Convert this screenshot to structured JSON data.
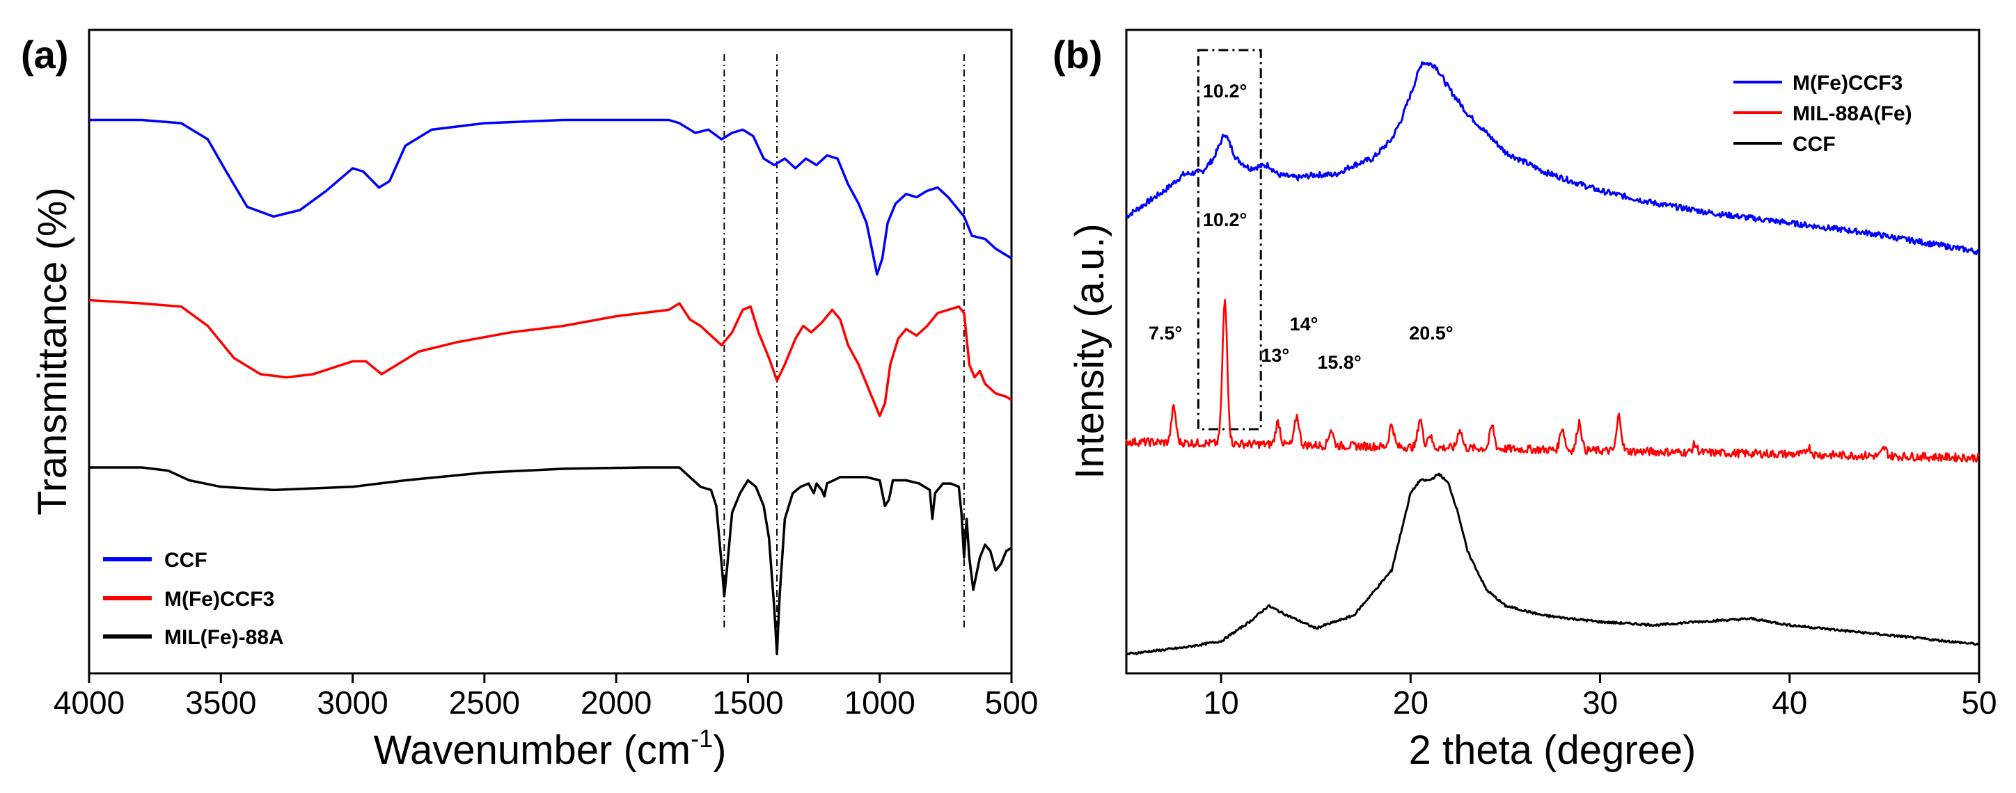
{
  "chart_data": [
    {
      "panel": "(a)",
      "type": "line",
      "title": "",
      "xlabel": "Wavenumber (cm",
      "xlabel_sup": "-1",
      "xlabel_end": ")",
      "ylabel": "Transmittance (%)",
      "xlim": [
        4000,
        500
      ],
      "x_reversed": true,
      "y_ticks_shown": false,
      "xticks": [
        4000,
        3500,
        3000,
        2500,
        2000,
        1500,
        1000,
        500
      ],
      "legend": {
        "position": "bottom-left"
      },
      "reference_lines": [
        1590,
        1390,
        680
      ],
      "series": [
        {
          "name": "CCF",
          "color": "#0000ff",
          "points": [
            [
              4000,
              86
            ],
            [
              3800,
              86
            ],
            [
              3650,
              85.5
            ],
            [
              3550,
              83
            ],
            [
              3480,
              78
            ],
            [
              3400,
              72.5
            ],
            [
              3300,
              71
            ],
            [
              3200,
              72
            ],
            [
              3100,
              75
            ],
            [
              3000,
              78.5
            ],
            [
              2960,
              78
            ],
            [
              2900,
              75.5
            ],
            [
              2860,
              76.5
            ],
            [
              2800,
              82
            ],
            [
              2700,
              84.5
            ],
            [
              2500,
              85.5
            ],
            [
              2200,
              86
            ],
            [
              2000,
              86
            ],
            [
              1800,
              86
            ],
            [
              1760,
              85.5
            ],
            [
              1700,
              84
            ],
            [
              1650,
              84.5
            ],
            [
              1600,
              83
            ],
            [
              1560,
              84
            ],
            [
              1520,
              84.5
            ],
            [
              1480,
              83.5
            ],
            [
              1440,
              80
            ],
            [
              1400,
              79
            ],
            [
              1360,
              80
            ],
            [
              1320,
              78.5
            ],
            [
              1280,
              80
            ],
            [
              1240,
              79
            ],
            [
              1200,
              80.5
            ],
            [
              1160,
              80
            ],
            [
              1120,
              76
            ],
            [
              1080,
              73
            ],
            [
              1050,
              70
            ],
            [
              1030,
              66
            ],
            [
              1010,
              62
            ],
            [
              990,
              64.5
            ],
            [
              970,
              70
            ],
            [
              940,
              73
            ],
            [
              900,
              74.5
            ],
            [
              860,
              74
            ],
            [
              820,
              75
            ],
            [
              780,
              75.5
            ],
            [
              740,
              74
            ],
            [
              700,
              72
            ],
            [
              680,
              71
            ],
            [
              650,
              68
            ],
            [
              600,
              67.5
            ],
            [
              560,
              66
            ],
            [
              520,
              65
            ],
            [
              500,
              64.5
            ]
          ]
        },
        {
          "name": "M(Fe)CCF3",
          "color": "#ff0000",
          "points": [
            [
              4000,
              58
            ],
            [
              3800,
              57.5
            ],
            [
              3650,
              57
            ],
            [
              3550,
              54
            ],
            [
              3450,
              49
            ],
            [
              3350,
              46.5
            ],
            [
              3250,
              46
            ],
            [
              3150,
              46.5
            ],
            [
              3000,
              48.5
            ],
            [
              2950,
              48.5
            ],
            [
              2890,
              46.5
            ],
            [
              2850,
              47.5
            ],
            [
              2750,
              50
            ],
            [
              2600,
              51.5
            ],
            [
              2400,
              53
            ],
            [
              2200,
              54
            ],
            [
              2000,
              55.5
            ],
            [
              1800,
              56.5
            ],
            [
              1760,
              57.5
            ],
            [
              1720,
              55
            ],
            [
              1680,
              54
            ],
            [
              1640,
              52.5
            ],
            [
              1600,
              51
            ],
            [
              1560,
              53
            ],
            [
              1520,
              56.5
            ],
            [
              1490,
              57
            ],
            [
              1460,
              53
            ],
            [
              1420,
              49
            ],
            [
              1390,
              45.5
            ],
            [
              1360,
              48
            ],
            [
              1320,
              52
            ],
            [
              1290,
              54
            ],
            [
              1260,
              53
            ],
            [
              1220,
              54.5
            ],
            [
              1180,
              56.5
            ],
            [
              1150,
              55
            ],
            [
              1120,
              51
            ],
            [
              1080,
              48
            ],
            [
              1050,
              45
            ],
            [
              1020,
              42
            ],
            [
              1000,
              40
            ],
            [
              980,
              42
            ],
            [
              960,
              48
            ],
            [
              930,
              52
            ],
            [
              900,
              53.5
            ],
            [
              860,
              52.5
            ],
            [
              820,
              54
            ],
            [
              780,
              56
            ],
            [
              740,
              56.5
            ],
            [
              700,
              57
            ],
            [
              680,
              56
            ],
            [
              660,
              48
            ],
            [
              640,
              46
            ],
            [
              620,
              47
            ],
            [
              600,
              45
            ],
            [
              560,
              43.5
            ],
            [
              520,
              43
            ],
            [
              500,
              42.5
            ]
          ]
        },
        {
          "name": "MIL(Fe)-88A",
          "color": "#000000",
          "points": [
            [
              4000,
              32
            ],
            [
              3800,
              32
            ],
            [
              3700,
              31.5
            ],
            [
              3620,
              30
            ],
            [
              3500,
              29
            ],
            [
              3300,
              28.5
            ],
            [
              3000,
              29
            ],
            [
              2800,
              30
            ],
            [
              2500,
              31.2
            ],
            [
              2200,
              31.8
            ],
            [
              1900,
              32
            ],
            [
              1760,
              32
            ],
            [
              1720,
              30.5
            ],
            [
              1680,
              29
            ],
            [
              1640,
              28.5
            ],
            [
              1620,
              26
            ],
            [
              1600,
              17
            ],
            [
              1590,
              12
            ],
            [
              1580,
              16
            ],
            [
              1560,
              25
            ],
            [
              1530,
              28
            ],
            [
              1500,
              30
            ],
            [
              1470,
              29
            ],
            [
              1440,
              26
            ],
            [
              1420,
              21
            ],
            [
              1400,
              10
            ],
            [
              1390,
              3
            ],
            [
              1380,
              12
            ],
            [
              1360,
              24
            ],
            [
              1330,
              28
            ],
            [
              1300,
              29
            ],
            [
              1270,
              29.5
            ],
            [
              1250,
              28
            ],
            [
              1240,
              29.5
            ],
            [
              1220,
              28.5
            ],
            [
              1210,
              27.5
            ],
            [
              1200,
              29.5
            ],
            [
              1150,
              30.5
            ],
            [
              1100,
              30.5
            ],
            [
              1050,
              30.5
            ],
            [
              1000,
              30
            ],
            [
              980,
              26
            ],
            [
              965,
              27
            ],
            [
              950,
              30
            ],
            [
              900,
              30
            ],
            [
              850,
              29.5
            ],
            [
              810,
              28.5
            ],
            [
              800,
              24
            ],
            [
              790,
              28
            ],
            [
              760,
              29.5
            ],
            [
              730,
              29.5
            ],
            [
              700,
              29
            ],
            [
              690,
              25
            ],
            [
              680,
              18
            ],
            [
              670,
              24
            ],
            [
              660,
              18
            ],
            [
              645,
              13
            ],
            [
              630,
              16
            ],
            [
              620,
              18
            ],
            [
              600,
              20
            ],
            [
              580,
              19
            ],
            [
              560,
              16
            ],
            [
              540,
              17
            ],
            [
              520,
              19
            ],
            [
              500,
              19.5
            ]
          ]
        }
      ]
    },
    {
      "panel": "(b)",
      "type": "line",
      "title": "",
      "xlabel": "2 theta (degree)",
      "ylabel": "Intensity (a.u.)",
      "xlim": [
        5,
        50
      ],
      "y_ticks_shown": false,
      "xticks": [
        10,
        20,
        30,
        40,
        50
      ],
      "legend": {
        "position": "top-right"
      },
      "highlight_box": [
        8.8,
        12.1
      ],
      "annotations": [
        {
          "text": "10.2°",
          "x": 10.2,
          "series": "M(Fe)CCF3"
        },
        {
          "text": "10.2°",
          "x": 10.2,
          "series": "MIL-88A(Fe)"
        },
        {
          "text": "7.5°",
          "x": 7.5,
          "series": "MIL-88A(Fe)"
        },
        {
          "text": "13°",
          "x": 13,
          "series": "MIL-88A(Fe)"
        },
        {
          "text": "14°",
          "x": 14,
          "series": "MIL-88A(Fe)"
        },
        {
          "text": "15.8°",
          "x": 15.8,
          "series": "MIL-88A(Fe)"
        },
        {
          "text": "20.5°",
          "x": 20.5,
          "series": "MIL-88A(Fe)"
        }
      ],
      "series": [
        {
          "name": "M(Fe)CCF3",
          "color": "#0000ff",
          "points": [
            [
              5,
              71
            ],
            [
              6,
              73
            ],
            [
              7,
              75
            ],
            [
              8,
              77.5
            ],
            [
              9,
              78
            ],
            [
              9.6,
              80
            ],
            [
              10.2,
              84
            ],
            [
              10.8,
              80
            ],
            [
              11.5,
              78.5
            ],
            [
              12.5,
              79
            ],
            [
              13,
              77.5
            ],
            [
              14,
              77
            ],
            [
              15,
              77.5
            ],
            [
              16,
              77.5
            ],
            [
              17,
              79
            ],
            [
              18,
              80
            ],
            [
              19,
              83
            ],
            [
              19.5,
              86
            ],
            [
              20,
              90
            ],
            [
              20.6,
              95
            ],
            [
              21.3,
              94.5
            ],
            [
              22,
              91
            ],
            [
              23,
              87
            ],
            [
              24,
              84
            ],
            [
              25,
              81
            ],
            [
              27,
              78
            ],
            [
              30,
              75
            ],
            [
              33,
              73
            ],
            [
              36,
              71.5
            ],
            [
              40,
              70
            ],
            [
              44,
              68.5
            ],
            [
              47,
              67
            ],
            [
              50,
              65.5
            ]
          ]
        },
        {
          "name": "MIL-88A(Fe)",
          "color": "#ff0000",
          "peaks": [
            [
              7.5,
              5.5
            ],
            [
              10.2,
              22
            ],
            [
              13,
              3.5
            ],
            [
              14,
              4.5
            ],
            [
              15.8,
              2.5
            ],
            [
              19,
              3.5
            ],
            [
              20.5,
              4.5
            ],
            [
              21,
              2
            ],
            [
              22.6,
              3
            ],
            [
              24.3,
              3.5
            ],
            [
              28,
              3.5
            ],
            [
              28.9,
              4.5
            ],
            [
              31,
              5.5
            ],
            [
              35,
              1.2
            ],
            [
              41,
              1.2
            ],
            [
              45,
              1.2
            ]
          ],
          "baseline": [
            [
              5,
              36
            ],
            [
              50,
              33.5
            ]
          ]
        },
        {
          "name": "CCF",
          "color": "#000000",
          "points": [
            [
              5,
              3
            ],
            [
              8,
              4
            ],
            [
              10,
              5
            ],
            [
              11.5,
              8
            ],
            [
              12.5,
              10.5
            ],
            [
              13.5,
              9
            ],
            [
              15,
              7
            ],
            [
              17,
              9
            ],
            [
              19,
              16
            ],
            [
              20,
              28
            ],
            [
              20.5,
              30
            ],
            [
              21,
              30
            ],
            [
              21.5,
              31
            ],
            [
              22,
              29.5
            ],
            [
              22.5,
              25
            ],
            [
              23,
              19
            ],
            [
              24,
              13
            ],
            [
              25,
              10.5
            ],
            [
              27,
              9
            ],
            [
              30,
              8
            ],
            [
              33,
              7.5
            ],
            [
              35,
              8
            ],
            [
              38,
              8.5
            ],
            [
              40,
              7.5
            ],
            [
              45,
              6
            ],
            [
              50,
              4.5
            ]
          ]
        }
      ]
    }
  ]
}
